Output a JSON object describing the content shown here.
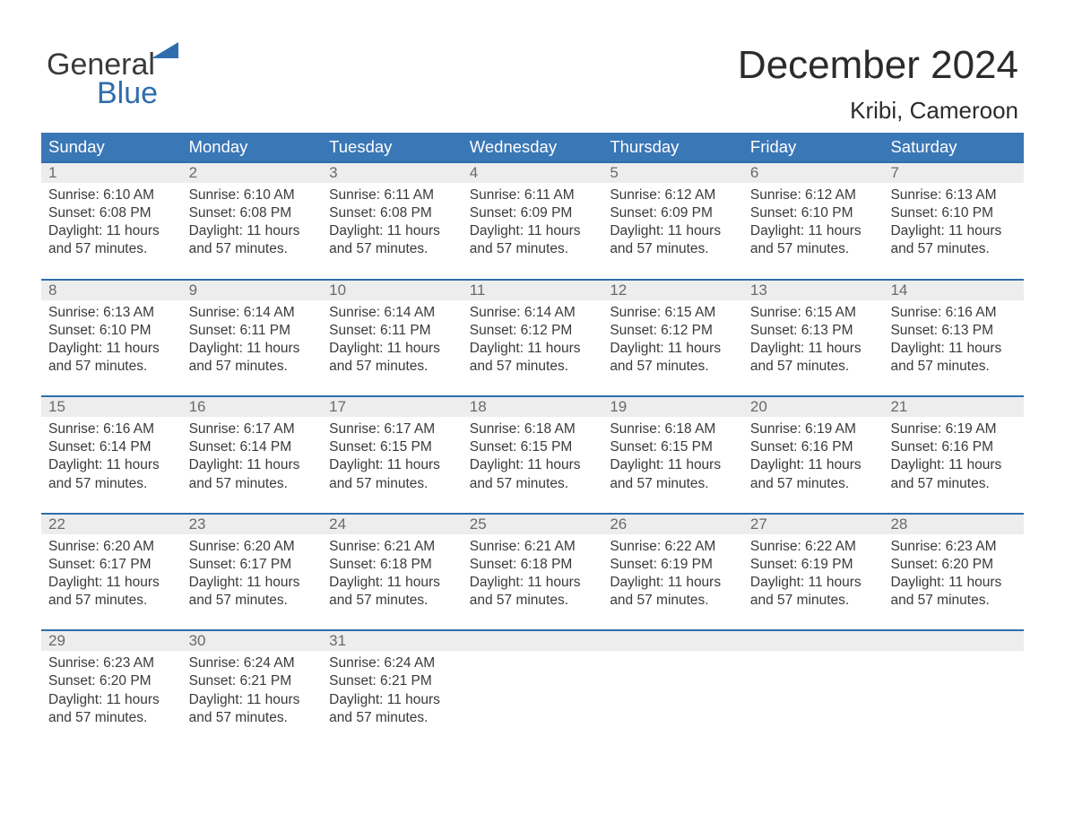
{
  "brand": {
    "word1": "General",
    "word2": "Blue",
    "text_color": "#3a3a3a",
    "accent_color": "#2f6eae"
  },
  "header": {
    "month_title": "December 2024",
    "location": "Kribi, Cameroon",
    "title_fontsize": 44,
    "location_fontsize": 26,
    "title_color": "#2b2b2b"
  },
  "calendar": {
    "dow_bg": "#3a77b6",
    "dow_fg": "#ffffff",
    "rule_color": "#2f6eae",
    "daynum_bg": "#ededed",
    "daynum_fg": "#6a6a6a",
    "cell_fg": "#3a3a3a",
    "days_of_week": [
      "Sunday",
      "Monday",
      "Tuesday",
      "Wednesday",
      "Thursday",
      "Friday",
      "Saturday"
    ],
    "weeks": [
      [
        {
          "n": "1",
          "sunrise": "6:10 AM",
          "sunset": "6:08 PM",
          "daylight": "11 hours and 57 minutes."
        },
        {
          "n": "2",
          "sunrise": "6:10 AM",
          "sunset": "6:08 PM",
          "daylight": "11 hours and 57 minutes."
        },
        {
          "n": "3",
          "sunrise": "6:11 AM",
          "sunset": "6:08 PM",
          "daylight": "11 hours and 57 minutes."
        },
        {
          "n": "4",
          "sunrise": "6:11 AM",
          "sunset": "6:09 PM",
          "daylight": "11 hours and 57 minutes."
        },
        {
          "n": "5",
          "sunrise": "6:12 AM",
          "sunset": "6:09 PM",
          "daylight": "11 hours and 57 minutes."
        },
        {
          "n": "6",
          "sunrise": "6:12 AM",
          "sunset": "6:10 PM",
          "daylight": "11 hours and 57 minutes."
        },
        {
          "n": "7",
          "sunrise": "6:13 AM",
          "sunset": "6:10 PM",
          "daylight": "11 hours and 57 minutes."
        }
      ],
      [
        {
          "n": "8",
          "sunrise": "6:13 AM",
          "sunset": "6:10 PM",
          "daylight": "11 hours and 57 minutes."
        },
        {
          "n": "9",
          "sunrise": "6:14 AM",
          "sunset": "6:11 PM",
          "daylight": "11 hours and 57 minutes."
        },
        {
          "n": "10",
          "sunrise": "6:14 AM",
          "sunset": "6:11 PM",
          "daylight": "11 hours and 57 minutes."
        },
        {
          "n": "11",
          "sunrise": "6:14 AM",
          "sunset": "6:12 PM",
          "daylight": "11 hours and 57 minutes."
        },
        {
          "n": "12",
          "sunrise": "6:15 AM",
          "sunset": "6:12 PM",
          "daylight": "11 hours and 57 minutes."
        },
        {
          "n": "13",
          "sunrise": "6:15 AM",
          "sunset": "6:13 PM",
          "daylight": "11 hours and 57 minutes."
        },
        {
          "n": "14",
          "sunrise": "6:16 AM",
          "sunset": "6:13 PM",
          "daylight": "11 hours and 57 minutes."
        }
      ],
      [
        {
          "n": "15",
          "sunrise": "6:16 AM",
          "sunset": "6:14 PM",
          "daylight": "11 hours and 57 minutes."
        },
        {
          "n": "16",
          "sunrise": "6:17 AM",
          "sunset": "6:14 PM",
          "daylight": "11 hours and 57 minutes."
        },
        {
          "n": "17",
          "sunrise": "6:17 AM",
          "sunset": "6:15 PM",
          "daylight": "11 hours and 57 minutes."
        },
        {
          "n": "18",
          "sunrise": "6:18 AM",
          "sunset": "6:15 PM",
          "daylight": "11 hours and 57 minutes."
        },
        {
          "n": "19",
          "sunrise": "6:18 AM",
          "sunset": "6:15 PM",
          "daylight": "11 hours and 57 minutes."
        },
        {
          "n": "20",
          "sunrise": "6:19 AM",
          "sunset": "6:16 PM",
          "daylight": "11 hours and 57 minutes."
        },
        {
          "n": "21",
          "sunrise": "6:19 AM",
          "sunset": "6:16 PM",
          "daylight": "11 hours and 57 minutes."
        }
      ],
      [
        {
          "n": "22",
          "sunrise": "6:20 AM",
          "sunset": "6:17 PM",
          "daylight": "11 hours and 57 minutes."
        },
        {
          "n": "23",
          "sunrise": "6:20 AM",
          "sunset": "6:17 PM",
          "daylight": "11 hours and 57 minutes."
        },
        {
          "n": "24",
          "sunrise": "6:21 AM",
          "sunset": "6:18 PM",
          "daylight": "11 hours and 57 minutes."
        },
        {
          "n": "25",
          "sunrise": "6:21 AM",
          "sunset": "6:18 PM",
          "daylight": "11 hours and 57 minutes."
        },
        {
          "n": "26",
          "sunrise": "6:22 AM",
          "sunset": "6:19 PM",
          "daylight": "11 hours and 57 minutes."
        },
        {
          "n": "27",
          "sunrise": "6:22 AM",
          "sunset": "6:19 PM",
          "daylight": "11 hours and 57 minutes."
        },
        {
          "n": "28",
          "sunrise": "6:23 AM",
          "sunset": "6:20 PM",
          "daylight": "11 hours and 57 minutes."
        }
      ],
      [
        {
          "n": "29",
          "sunrise": "6:23 AM",
          "sunset": "6:20 PM",
          "daylight": "11 hours and 57 minutes."
        },
        {
          "n": "30",
          "sunrise": "6:24 AM",
          "sunset": "6:21 PM",
          "daylight": "11 hours and 57 minutes."
        },
        {
          "n": "31",
          "sunrise": "6:24 AM",
          "sunset": "6:21 PM",
          "daylight": "11 hours and 57 minutes."
        },
        null,
        null,
        null,
        null
      ]
    ],
    "labels": {
      "sunrise_prefix": "Sunrise: ",
      "sunset_prefix": "Sunset: ",
      "daylight_prefix": "Daylight: "
    }
  }
}
